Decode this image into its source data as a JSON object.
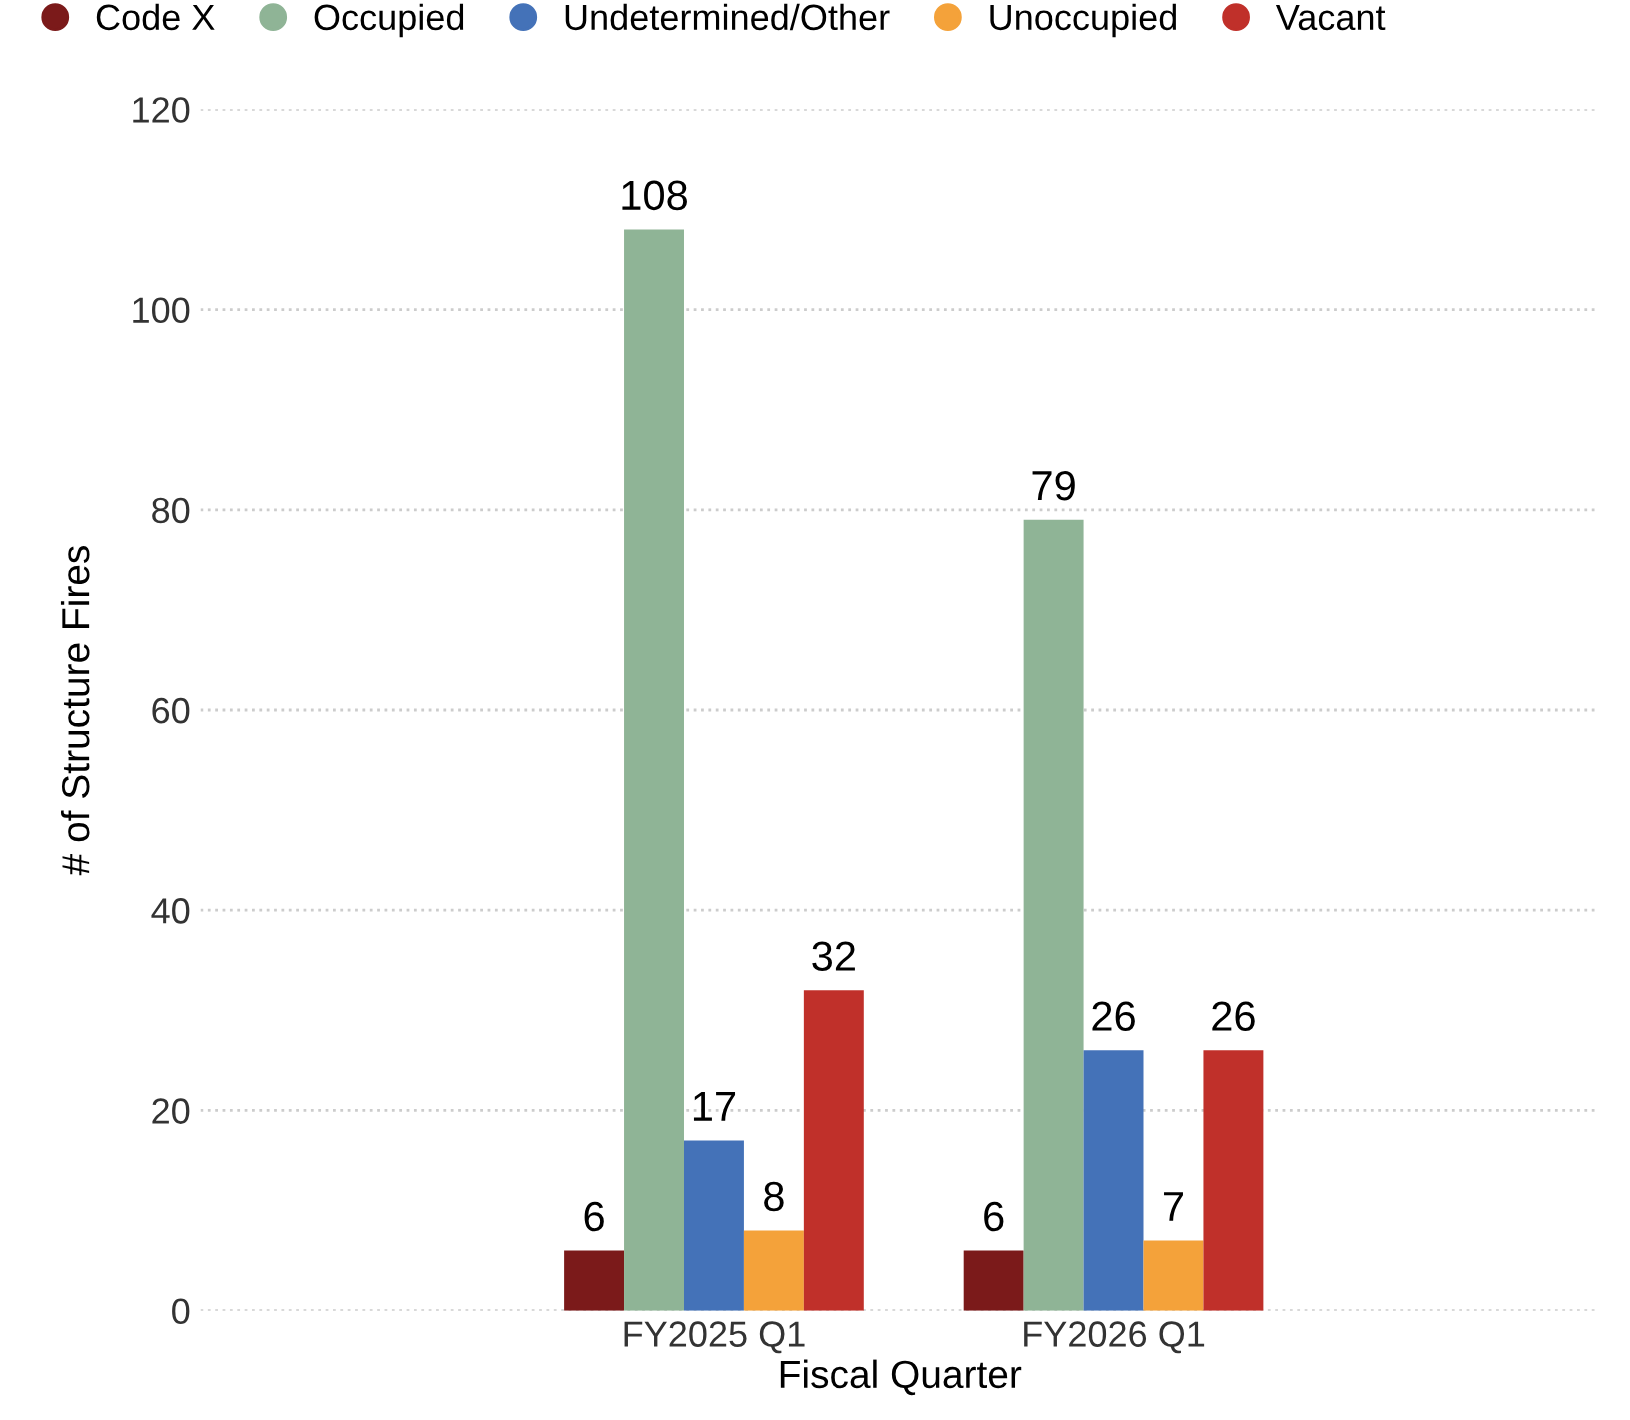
{
  "chart_data": {
    "type": "bar",
    "xlabel": "Fiscal Quarter",
    "ylabel": "# of Structure Fires",
    "categories": [
      "FY2025 Q1",
      "FY2026 Q1"
    ],
    "series": [
      {
        "name": "Code X",
        "color": "#7b1a1a",
        "values": [
          6,
          6
        ]
      },
      {
        "name": "Occupied",
        "color": "#8fb496",
        "values": [
          108,
          79
        ]
      },
      {
        "name": "Undetermined/Other",
        "color": "#4472b8",
        "values": [
          17,
          26
        ]
      },
      {
        "name": "Unoccupied",
        "color": "#f4a23a",
        "values": [
          8,
          7
        ]
      },
      {
        "name": "Vacant",
        "color": "#c0302a",
        "values": [
          32,
          26
        ]
      }
    ],
    "ylim": [
      0,
      120
    ],
    "yticks": [
      0,
      20,
      40,
      60,
      80,
      100,
      120
    ],
    "grid": "y",
    "legend": "top left",
    "data_labels": true
  }
}
